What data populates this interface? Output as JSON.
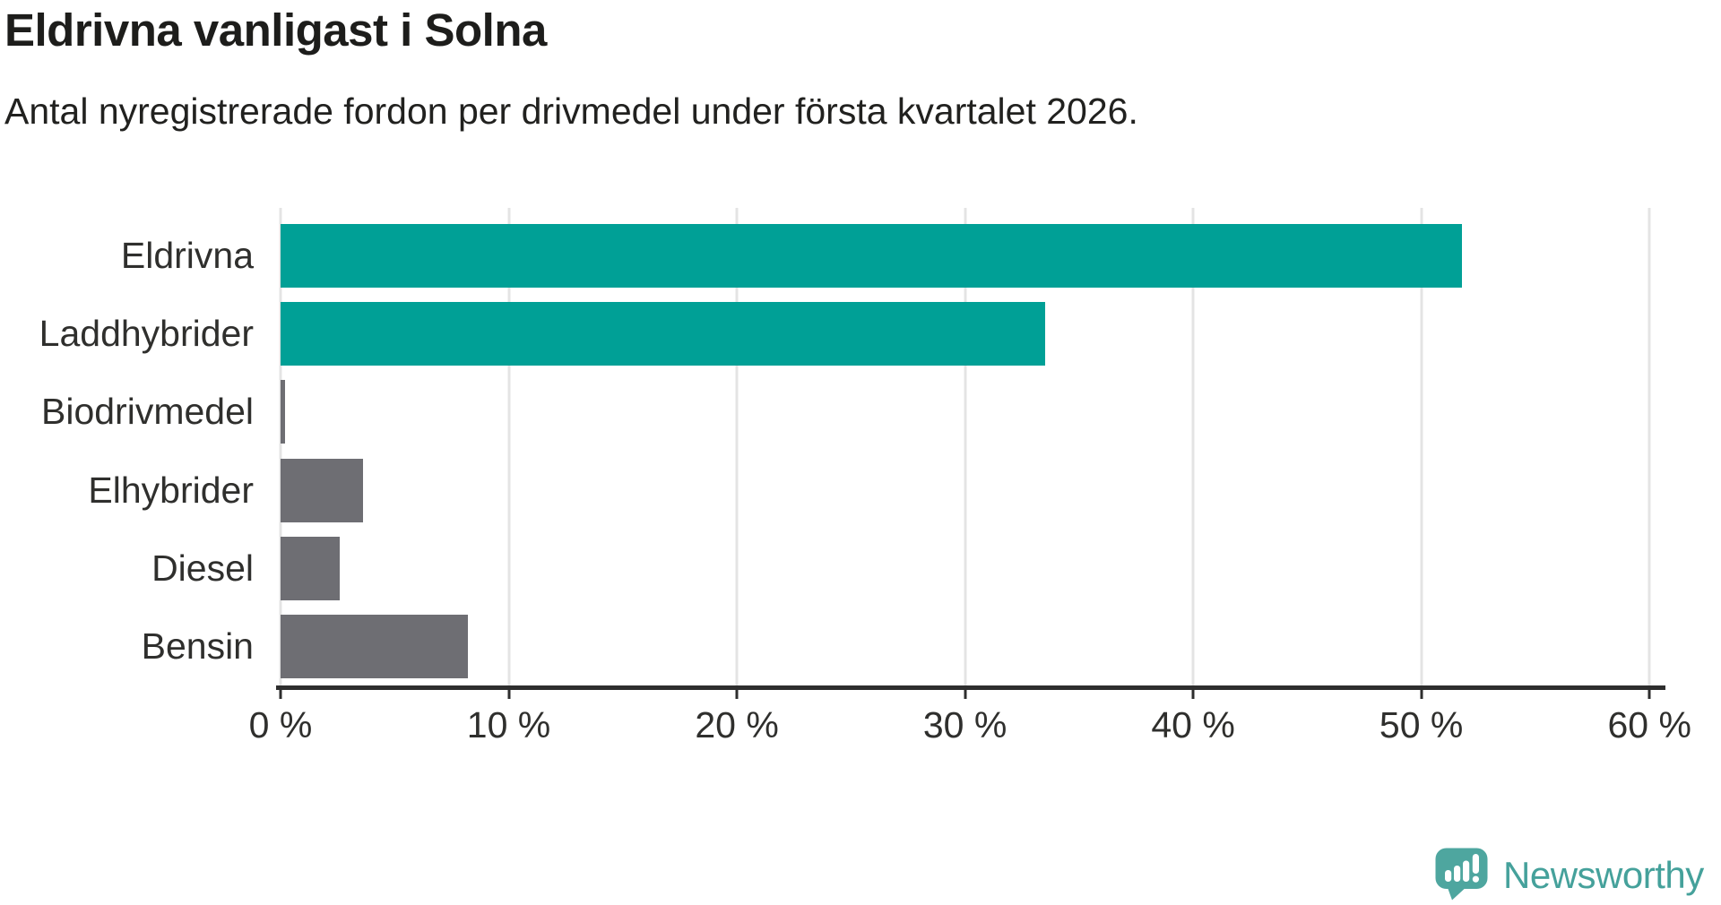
{
  "header": {
    "title": "Eldrivna vanligast i Solna",
    "subtitle": "Antal nyregistrerade fordon per drivmedel under första kvartalet 2026."
  },
  "chart_data": {
    "type": "bar",
    "orientation": "horizontal",
    "title": "Eldrivna vanligast i Solna",
    "subtitle": "Antal nyregistrerade fordon per drivmedel under första kvartalet 2026.",
    "categories": [
      "Eldrivna",
      "Laddhybrider",
      "Biodrivmedel",
      "Elhybrider",
      "Diesel",
      "Bensin"
    ],
    "values": [
      51.8,
      33.5,
      0.2,
      3.6,
      2.6,
      8.2
    ],
    "unit": "%",
    "bar_colors": [
      "#00A096",
      "#00A096",
      "#6E6E73",
      "#6E6E73",
      "#6E6E73",
      "#6E6E73"
    ],
    "x_ticks": [
      0,
      10,
      20,
      30,
      40,
      50,
      60
    ],
    "x_tick_labels": [
      "0 %",
      "10 %",
      "20 %",
      "30 %",
      "40 %",
      "50 %",
      "60 %"
    ],
    "xlim": [
      0,
      60.7
    ],
    "grid": true,
    "legend": false,
    "ylabel": "",
    "xlabel": ""
  },
  "footer": {
    "brand": "Newsworthy"
  },
  "colors": {
    "bar_teal": "#00A096",
    "bar_gray": "#6E6E73",
    "axis": "#2E2E2E",
    "gridline": "#E4E4E4",
    "title_text": "#1D1D1B",
    "body_text": "#2F2F2D",
    "brand_teal": "#45A19B"
  }
}
